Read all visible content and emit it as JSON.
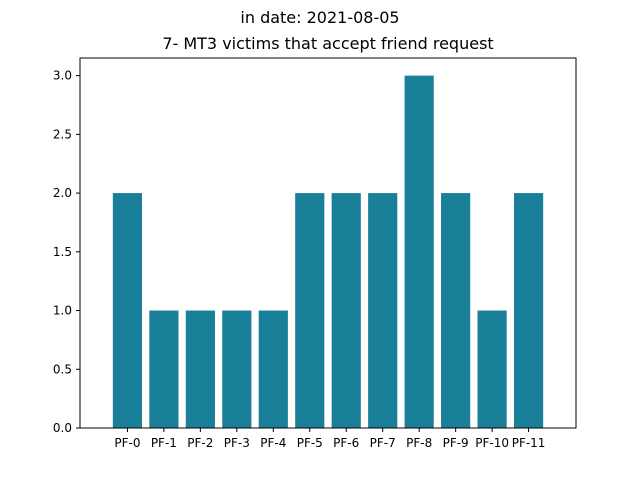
{
  "figure": {
    "suptitle": "in date: 2021-08-05"
  },
  "chart_data": {
    "type": "bar",
    "title": "7- MT3 victims that accept friend request",
    "xlabel": "",
    "ylabel": "",
    "categories": [
      "PF-0",
      "PF-1",
      "PF-2",
      "PF-3",
      "PF-4",
      "PF-5",
      "PF-6",
      "PF-7",
      "PF-8",
      "PF-9",
      "PF-10",
      "PF-11"
    ],
    "values": [
      2,
      1,
      1,
      1,
      1,
      2,
      2,
      2,
      3,
      2,
      1,
      2
    ],
    "ylim": [
      0,
      3.15
    ],
    "yticks": [
      "0.0",
      "0.5",
      "1.0",
      "1.5",
      "2.0",
      "2.5",
      "3.0"
    ],
    "bar_color": "#1a7f99",
    "grid": false,
    "legend": "none"
  }
}
